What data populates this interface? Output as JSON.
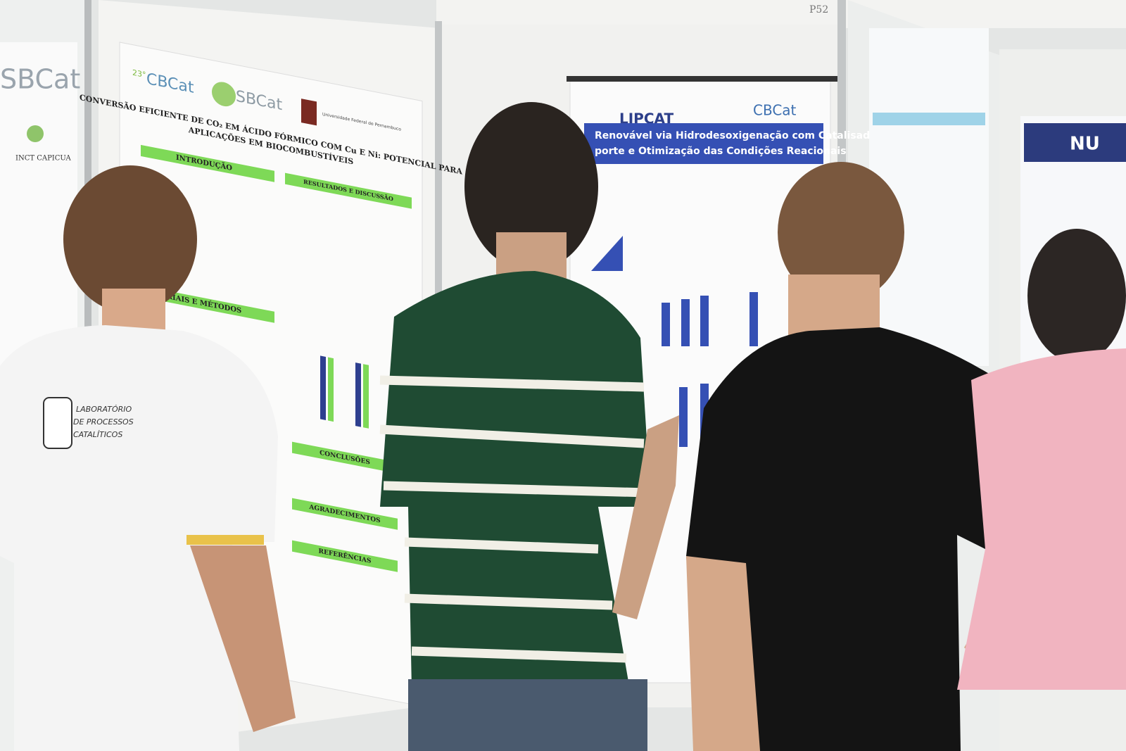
{
  "booth_number": "P52",
  "far_left_poster": {
    "logo": "SBCat",
    "text": "INCT CAPICUA"
  },
  "left_poster": {
    "logos": [
      "23°",
      "CBCat",
      "SBCat",
      "Universidade Federal de Pernambuco"
    ],
    "title": [
      "CONVERSÃO EFICIENTE DE CO₂ EM ÁCIDO FÓRMICO COM Cu E Ni: POTENCIAL PARA",
      "APLICAÇÕES EM BIOCOMBUSTÍVEIS"
    ],
    "sections": [
      "INTRODUÇÃO",
      "RESULTADOS E DISCUSSÃO",
      "RIAIS E MÉTODOS",
      "CONCLUSÕES",
      "AGRADECIMENTOS",
      "REFERÊNCIAS"
    ]
  },
  "right_poster": {
    "logos": [
      "LIPCAT",
      "CBCat"
    ],
    "title": [
      "Renovável via Hidrodesoxigenação com Catalisadores de",
      "porte e Otimização das Condições Reacionais"
    ]
  },
  "far_right_poster": {
    "logo": "NU"
  },
  "shirt_print": [
    "LABORATÓRIO",
    "DE PROCESSOS",
    "CATALÍTICOS"
  ]
}
